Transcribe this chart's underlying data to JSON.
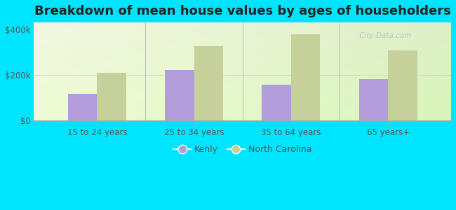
{
  "title": "Breakdown of mean house values by ages of householders",
  "categories": [
    "15 to 24 years",
    "25 to 34 years",
    "35 to 64 years",
    "65 years+"
  ],
  "kenly_values": [
    118000,
    222000,
    158000,
    182000
  ],
  "nc_values": [
    208000,
    325000,
    378000,
    308000
  ],
  "kenly_color": "#b39ddb",
  "nc_color": "#c5d09a",
  "background_color": "#00e5ff",
  "ylabel_ticks": [
    "$0",
    "$200k",
    "$400k"
  ],
  "ytick_values": [
    0,
    200000,
    400000
  ],
  "ylim": [
    0,
    430000
  ],
  "legend_labels": [
    "Kenly",
    "North Carolina"
  ],
  "title_fontsize": 13,
  "watermark": " City-Data.com"
}
